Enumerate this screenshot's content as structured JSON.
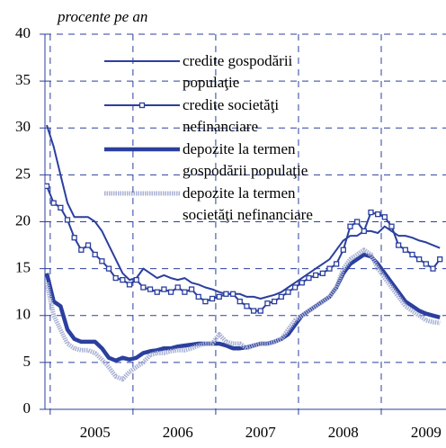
{
  "chart_data": {
    "type": "line",
    "subtitle": "procente pe an",
    "categories": [
      null,
      null,
      null,
      null,
      null,
      null,
      null,
      "2005",
      null,
      null,
      null,
      null,
      null,
      null,
      null,
      null,
      null,
      null,
      null,
      "2006",
      null,
      null,
      null,
      null,
      null,
      null,
      null,
      null,
      null,
      null,
      null,
      "2007",
      null,
      null,
      null,
      null,
      null,
      null,
      null,
      null,
      null,
      null,
      null,
      "2008",
      null,
      null,
      null,
      null,
      null,
      null,
      null,
      null,
      null,
      null,
      null,
      "2009",
      null,
      null
    ],
    "ylim": [
      0,
      40
    ],
    "yticks": [
      0,
      5,
      10,
      15,
      20,
      25,
      30,
      35,
      40
    ],
    "grid": true,
    "legend": "upper center",
    "series": [
      {
        "name": "credite gospodării populaţie",
        "color": "#2b3f9e",
        "width": 2,
        "values": [
          30.3,
          28,
          25,
          22,
          20.5,
          20.5,
          20.5,
          20,
          19,
          17.5,
          16,
          14.5,
          13.8,
          14,
          15,
          14.5,
          14,
          14.3,
          14,
          13.8,
          14,
          13.5,
          13.3,
          13,
          12.8,
          12.5,
          12.3,
          12.3,
          12.3,
          12,
          12,
          11.8,
          12,
          12.2,
          12.5,
          13,
          13.5,
          14,
          14.5,
          15,
          15.5,
          16,
          17,
          18,
          18.5,
          18.5,
          19,
          19,
          18.8,
          19.5,
          19,
          18.5,
          18.5,
          18.3,
          18,
          17.8,
          17.5,
          17.2
        ]
      },
      {
        "name": "credite societăţi nefinanciare",
        "color": "#2b3f9e",
        "width": 2,
        "marker": "square",
        "values": [
          23.8,
          22,
          21.5,
          20.2,
          18.3,
          17,
          17.5,
          16.5,
          15.8,
          15,
          14,
          13.8,
          13.3,
          13.8,
          13,
          12.8,
          12.5,
          12.8,
          12.5,
          13,
          12.5,
          12.8,
          12,
          11.5,
          11.8,
          12,
          12.3,
          12.3,
          11.5,
          11,
          10.5,
          10.5,
          11.3,
          11.5,
          12,
          12.5,
          13,
          13.5,
          14,
          14.3,
          14.5,
          15,
          15.5,
          17,
          19.5,
          20,
          19,
          21,
          20.8,
          20.5,
          19.5,
          17.5,
          17,
          16.5,
          16,
          15.5,
          15,
          16
        ]
      },
      {
        "name": "depozite la termen gospodării populaţie",
        "color": "#2b3f9e",
        "width": 4.5,
        "values": [
          14.5,
          11.5,
          11,
          8.5,
          7.5,
          7.2,
          7.2,
          7.2,
          6.5,
          5.5,
          5.2,
          5.5,
          5.3,
          5.5,
          6,
          6.2,
          6.3,
          6.5,
          6.5,
          6.7,
          6.8,
          6.9,
          7,
          7,
          7,
          7,
          6.8,
          6.5,
          6.5,
          6.6,
          6.8,
          7,
          7,
          7.2,
          7.5,
          8,
          9,
          10,
          10.5,
          11,
          11.5,
          12,
          13,
          14.5,
          15.5,
          16,
          16.5,
          16.3,
          15.5,
          14.5,
          13.5,
          12.5,
          11.5,
          11,
          10.5,
          10.2,
          10,
          9.8
        ]
      },
      {
        "name": "depozite la termen societăţi nefinanciare",
        "color": "#a9b1d4",
        "width": 5,
        "dash": true,
        "values": [
          13.5,
          10,
          8.5,
          7,
          6.5,
          6.3,
          6.3,
          6,
          5.3,
          4.5,
          3.5,
          3.2,
          4,
          4.5,
          5,
          5.8,
          6,
          6,
          6.2,
          6.3,
          6.3,
          6.5,
          6.8,
          7,
          7,
          8,
          7.2,
          7,
          7,
          6.5,
          6.8,
          7,
          7,
          7.2,
          7.5,
          8.5,
          9.5,
          10,
          10.5,
          11,
          11.5,
          12,
          13,
          15,
          16,
          16.5,
          17,
          16.5,
          15,
          14,
          13,
          12,
          11,
          10.5,
          10,
          9.5,
          9.3,
          9.2
        ]
      }
    ]
  }
}
